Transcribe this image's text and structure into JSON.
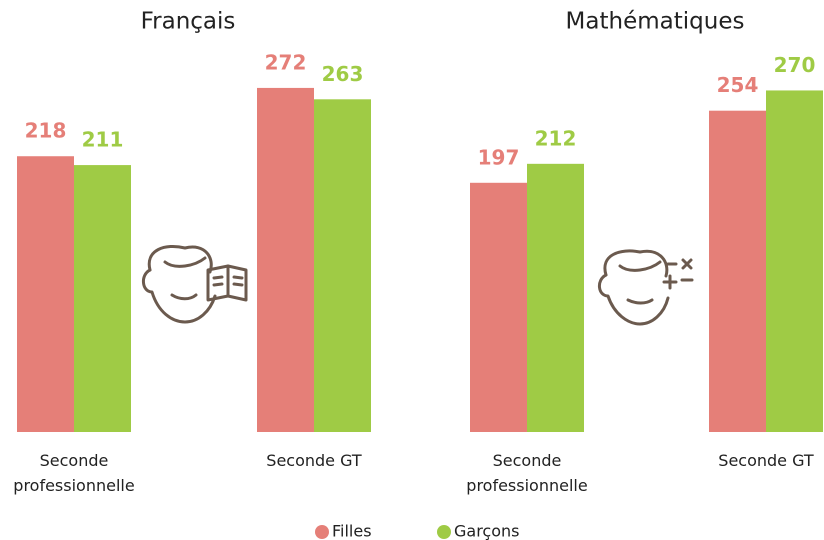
{
  "chart_data": [
    {
      "type": "bar",
      "title": "Français",
      "categories": [
        "Seconde professionnelle",
        "Seconde GT"
      ],
      "series": [
        {
          "name": "Filles",
          "color": "#e57f78",
          "values": [
            218,
            272
          ]
        },
        {
          "name": "Garçons",
          "color": "#9fcb45",
          "values": [
            211,
            263
          ]
        }
      ]
    },
    {
      "type": "bar",
      "title": "Mathématiques",
      "categories": [
        "Seconde professionnelle",
        "Seconde GT"
      ],
      "series": [
        {
          "name": "Filles",
          "color": "#e57f78",
          "values": [
            197,
            254
          ]
        },
        {
          "name": "Garçons",
          "color": "#9fcb45",
          "values": [
            212,
            270
          ]
        }
      ]
    }
  ]
}
